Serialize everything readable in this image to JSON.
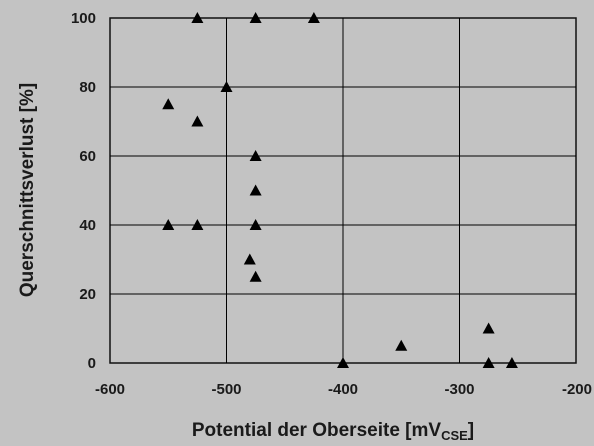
{
  "chart_data": {
    "type": "scatter",
    "title": "",
    "xlabel": "Potential der Oberseite [mV",
    "xlabel_sub": "CSE",
    "xlabel_suffix": "]",
    "ylabel": "Querschnittsverlust [%]",
    "xlim": [
      -600,
      -200
    ],
    "ylim": [
      0,
      100
    ],
    "x_ticks": [
      -600,
      -500,
      -400,
      -300,
      -200
    ],
    "y_ticks": [
      0,
      20,
      40,
      60,
      80,
      100
    ],
    "grid": true,
    "marker": "triangle",
    "colors": {
      "background": "#c3c3c3",
      "marker": "#000000",
      "grid": "#000000"
    },
    "points": [
      {
        "x": -525,
        "y": 100
      },
      {
        "x": -475,
        "y": 100
      },
      {
        "x": -425,
        "y": 100
      },
      {
        "x": -500,
        "y": 80
      },
      {
        "x": -550,
        "y": 75
      },
      {
        "x": -525,
        "y": 70
      },
      {
        "x": -475,
        "y": 60
      },
      {
        "x": -475,
        "y": 50
      },
      {
        "x": -550,
        "y": 40
      },
      {
        "x": -525,
        "y": 40
      },
      {
        "x": -475,
        "y": 40
      },
      {
        "x": -480,
        "y": 30
      },
      {
        "x": -475,
        "y": 25
      },
      {
        "x": -275,
        "y": 10
      },
      {
        "x": -350,
        "y": 5
      },
      {
        "x": -400,
        "y": 0
      },
      {
        "x": -275,
        "y": 0
      },
      {
        "x": -255,
        "y": 0
      }
    ]
  }
}
